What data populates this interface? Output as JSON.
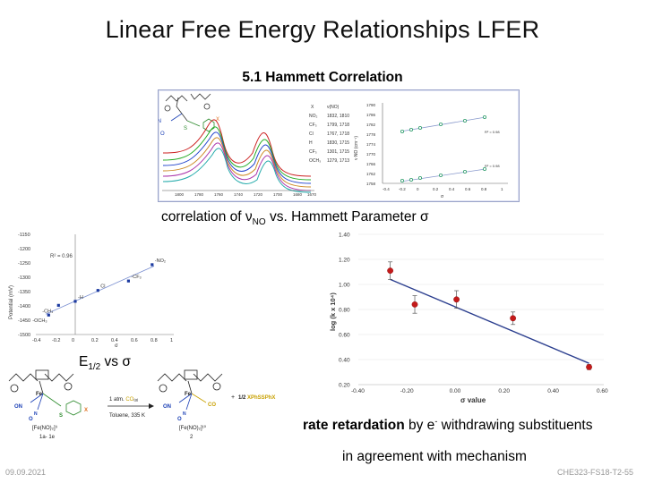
{
  "title": "Linear Free Energy Relationships LFER",
  "subtitle": "5.1 Hammett Correlation",
  "caption_correlation": {
    "prefix": "correlation of ",
    "nu": "ν",
    "sub": "NO",
    "mid": " vs. Hammett Parameter ",
    "sigma": "σ"
  },
  "caption_e12": {
    "e": "E",
    "sub": "1/2",
    "rest": " vs ",
    "sigma": "σ"
  },
  "caption_rate": {
    "bold": "rate retardation",
    "mid": " by e",
    "sup": "-",
    "rest": " withdrawing substituents"
  },
  "caption_agree": "in agreement with mechanism",
  "footer_date": "09.09.2021",
  "footer_code": "CHE323-FS18-T2-55",
  "ir_spectrum": {
    "x_ticks": [
      "1800",
      "1780",
      "1760",
      "1740",
      "1720",
      "1700",
      "1680",
      "1670"
    ],
    "table_header": [
      "X",
      "ν(NO)"
    ],
    "table_rows": [
      [
        "NO₂",
        "1832, 1810"
      ],
      [
        "CF₃",
        "1799, 1718"
      ],
      [
        "Cl",
        "1767, 1718"
      ],
      [
        "H",
        "1830, 1715"
      ],
      [
        "CF₃",
        "1301, 1715"
      ],
      [
        "OCH₃",
        "1279, 1713"
      ]
    ],
    "label_x": "X",
    "label_s": "S",
    "label_on": "ON",
    "label_o": "O"
  },
  "nu_plot": {
    "y_ticks": [
      "1790",
      "1786",
      "1782",
      "1778",
      "1774",
      "1770",
      "1766",
      "1762",
      "1758"
    ],
    "x_ticks": [
      "-0.4",
      "-0.2",
      "0",
      "0.2",
      "0.4",
      "0.6",
      "0.8",
      "1"
    ],
    "ylabel": "ν NO (cm⁻¹)",
    "xlabel": "σ",
    "r2_top": "R² = 0.98",
    "r2_bottom": "R² = 0.98"
  },
  "chart_data": [
    {
      "type": "scatter",
      "ylabel": "Potential (mV)",
      "xlabel": "σ",
      "annotation": "R² = 0.96",
      "x_ticks": [
        "-0.4",
        "-0.2",
        "0",
        "0.2",
        "0.4",
        "0.6",
        "0.8",
        "1"
      ],
      "y_ticks": [
        "-1150",
        "-1200",
        "-1250",
        "-1300",
        "-1350",
        "-1400",
        "-1450",
        "-1500"
      ],
      "xlim": [
        -0.4,
        1.0
      ],
      "ylim": [
        -1500,
        -1150
      ],
      "points": [
        {
          "label": "-OCH₃",
          "x": -0.27,
          "y": -1432
        },
        {
          "label": "-CH₃",
          "x": -0.17,
          "y": -1398
        },
        {
          "label": "-H",
          "x": 0.0,
          "y": -1384
        },
        {
          "label": "Cl",
          "x": 0.23,
          "y": -1346
        },
        {
          "label": "-CF₃",
          "x": 0.54,
          "y": -1313
        },
        {
          "label": "-NO₂",
          "x": 0.78,
          "y": -1256
        }
      ]
    },
    {
      "type": "scatter",
      "ylabel": "log (k x 10⁴)",
      "xlabel": "σ value",
      "x_ticks": [
        "-0.40",
        "-0.20",
        "0.00",
        "0.20",
        "0.40",
        "0.60"
      ],
      "y_ticks": [
        "0.20",
        "0.40",
        "0.60",
        "0.80",
        "1.00",
        "1.20",
        "1.40"
      ],
      "xlim": [
        -0.4,
        0.6
      ],
      "ylim": [
        0.2,
        1.4
      ],
      "points": [
        {
          "x": -0.27,
          "y": 1.11,
          "err": 0.07
        },
        {
          "x": -0.17,
          "y": 0.84,
          "err": 0.07
        },
        {
          "x": 0.0,
          "y": 0.88,
          "err": 0.07
        },
        {
          "x": 0.23,
          "y": 0.73,
          "err": 0.05
        },
        {
          "x": 0.54,
          "y": 0.34,
          "err": 0.02
        }
      ],
      "fit": {
        "x0": -0.27,
        "y0": 1.04,
        "x1": 0.54,
        "y1": 0.37
      }
    }
  ],
  "scheme": {
    "reagent_top": "1 atm. ",
    "reagent_co": "CO",
    "reagent_sub": "(g)",
    "reagent_bottom": "Toluene, 335 K",
    "plus": "+",
    "product2_coeff": "1/2 ",
    "product2_name": "XPhSSPhX",
    "label_left": "[Fe(NO)₂]⁹",
    "label_left_id": "1a- 1e",
    "label_right": "[Fe(NO)₂]¹⁰",
    "label_right_id": "2",
    "label_fe": "Fe",
    "label_on": "ON",
    "label_o": "O",
    "label_n": "N",
    "label_s": "S",
    "label_x": "X",
    "label_co": "CO"
  }
}
